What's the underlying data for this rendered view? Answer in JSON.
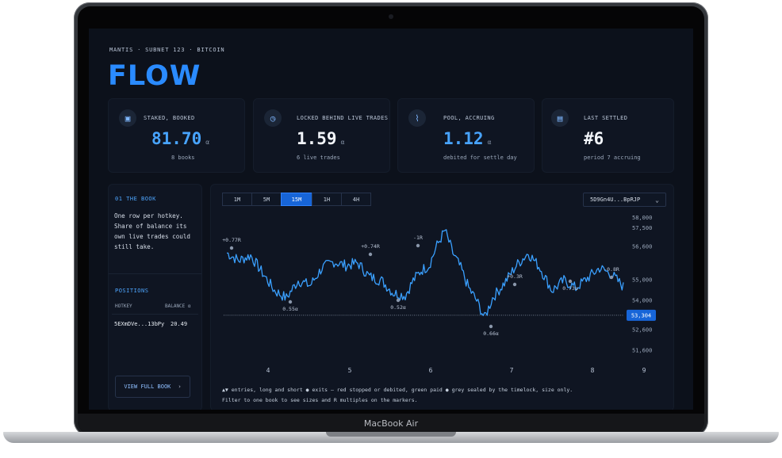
{
  "device": {
    "label": "MacBook Air"
  },
  "header": {
    "breadcrumb": "MANTIS · SUBNET 123 · BITCOIN",
    "title": "FLOW"
  },
  "kpis": [
    {
      "icon": "wallet-icon",
      "label": "STAKED, BOOKED",
      "value": "81.70",
      "unit": "α",
      "sub": "8 books",
      "accent": "#48a4ff"
    },
    {
      "icon": "clock-icon",
      "label": "LOCKED BEHIND LIVE TRADES",
      "value": "1.59",
      "unit": "α",
      "sub": "6 live trades",
      "accent": "#f2f5fa"
    },
    {
      "icon": "pool-icon",
      "label": "POOL, ACCRUING",
      "value": "1.12",
      "unit": "α",
      "sub": "debited for settle day",
      "accent": "#48a4ff"
    },
    {
      "icon": "calendar-icon",
      "label": "LAST SETTLED",
      "value": "#6",
      "unit": "",
      "sub": "period 7 accruing",
      "accent": "#f2f5fa"
    }
  ],
  "sidebar": {
    "section_title": "01 THE BOOK",
    "description_lines": [
      "One row per hotkey.",
      "Share of balance its",
      "own live trades could",
      "still take."
    ],
    "positions_title": "POSITIONS",
    "columns": [
      "HOTKEY",
      "BALANCE α"
    ],
    "rows": [
      {
        "hotkey": "5EXmDVe...13bPy",
        "balance": "20.49"
      }
    ],
    "view_button": "VIEW FULL BOOK"
  },
  "toolbar": {
    "timeframes": [
      "1M",
      "5M",
      "15M",
      "1H",
      "4H"
    ],
    "active_timeframe": "15M",
    "hotkey_select": "5D9Gn4U...BpRJP"
  },
  "chart_data": {
    "type": "line",
    "y_ticks": [
      58000,
      57500,
      56600,
      55000,
      54000,
      53304,
      52600,
      51600
    ],
    "y_tick_labels": [
      "58,000",
      "57,500",
      "56,600",
      "55,000",
      "54,000",
      "53,304",
      "52,600",
      "51,600"
    ],
    "ylim": [
      51200,
      58300
    ],
    "current_price": 53304,
    "current_price_label": "53,304",
    "x_ticks": [
      "4",
      "5",
      "6",
      "7",
      "8",
      "9"
    ],
    "annotations": [
      {
        "label": "+0.77R",
        "kind": "entry"
      },
      {
        "label": "0.55α",
        "kind": "exit"
      },
      {
        "label": "+0.74R",
        "kind": "entry"
      },
      {
        "label": "0.52α",
        "kind": "exit"
      },
      {
        "label": "-1R",
        "kind": "entry"
      },
      {
        "label": "0.66α",
        "kind": "exit"
      },
      {
        "label": "+0.3R",
        "kind": "entry"
      },
      {
        "label": "0.73α",
        "kind": "exit"
      },
      {
        "label": "-0.8R",
        "kind": "entry"
      }
    ],
    "grid": false,
    "accent": "#3aa0ff"
  },
  "legend": {
    "line1": "▲▼ entries, long and short  ● exits — red stopped or debited, green paid  ● grey sealed by the timelock, size only.",
    "line2": "Filter to one book to see sizes and R multiples on the markers."
  }
}
